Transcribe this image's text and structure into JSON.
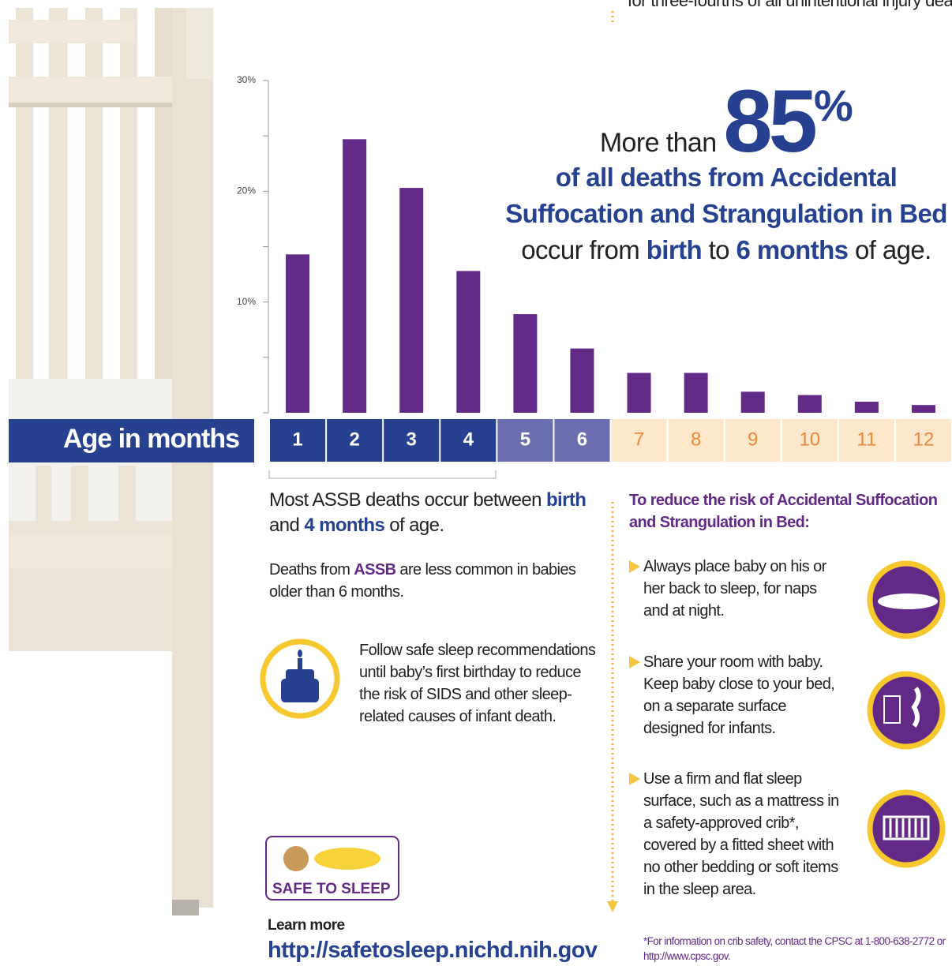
{
  "top_fragment": "for three-fourths of all unintentional injury deaths.",
  "chart_data": {
    "type": "bar",
    "x_axis_label": "Age in months",
    "categories": [
      "1",
      "2",
      "3",
      "4",
      "5",
      "6",
      "7",
      "8",
      "9",
      "10",
      "11",
      "12"
    ],
    "values": [
      14.3,
      24.7,
      20.3,
      12.8,
      8.9,
      5.8,
      3.6,
      3.6,
      1.9,
      1.6,
      1.0,
      0.7
    ],
    "color": "#622a86",
    "category_colors": [
      "#26418f",
      "#26418f",
      "#26418f",
      "#26418f",
      "#6c6faf",
      "#6c6faf",
      "#fde8cc",
      "#fde8cc",
      "#fde8cc",
      "#fde8cc",
      "#fde8cc",
      "#fde8cc"
    ],
    "category_text_colors": [
      "#ffffff",
      "#ffffff",
      "#ffffff",
      "#ffffff",
      "#ffffff",
      "#ffffff",
      "#e8893b",
      "#e8893b",
      "#e8893b",
      "#e8893b",
      "#e8893b",
      "#e8893b"
    ],
    "ylim": [
      0,
      30
    ],
    "yticks": [
      {
        "value": 10,
        "label": "10%"
      },
      {
        "value": 20,
        "label": "20%"
      },
      {
        "value": 30,
        "label": "30%"
      }
    ],
    "minor_yticks": [
      0,
      5,
      15,
      25
    ]
  },
  "callout": {
    "prefix": "More than",
    "number": "85",
    "percent": "%",
    "line2": "of all deaths from Accidental",
    "line3": "Suffocation and Strangulation in Bed",
    "line4": [
      "occur from ",
      "birth",
      " to ",
      "6 months",
      " of age."
    ]
  },
  "note1": [
    "Most ASSB deaths occur between ",
    "birth",
    " and ",
    "4 months",
    " of age."
  ],
  "note2": [
    "Deaths from ",
    "ASSB",
    " are less common in babies older than 6 months."
  ],
  "note3": "Follow safe sleep recommendations until baby’s first birthday to reduce the risk of SIDS and other sleep-related causes of infant death.",
  "tips_heading": "To reduce the risk of Accidental Suffocation and Strangulation in Bed:",
  "tips": [
    "Always place baby on his or her back to sleep, for naps and at night.",
    "Share your room with baby. Keep baby close to your bed, on a separate surface designed for infants.",
    "Use a firm and flat sleep surface, such as a mattress in a safety-approved crib*, covered by a fitted sheet with no other bedding or soft items in the sleep area."
  ],
  "logo_text": "SAFE TO SLEEP",
  "learn_more": "Learn more",
  "url": "http://safetosleep.nichd.nih.gov",
  "footnote": "*For information on crib safety, contact the CPSC at 1-800-638-2772 or http://www.cpsc.gov."
}
